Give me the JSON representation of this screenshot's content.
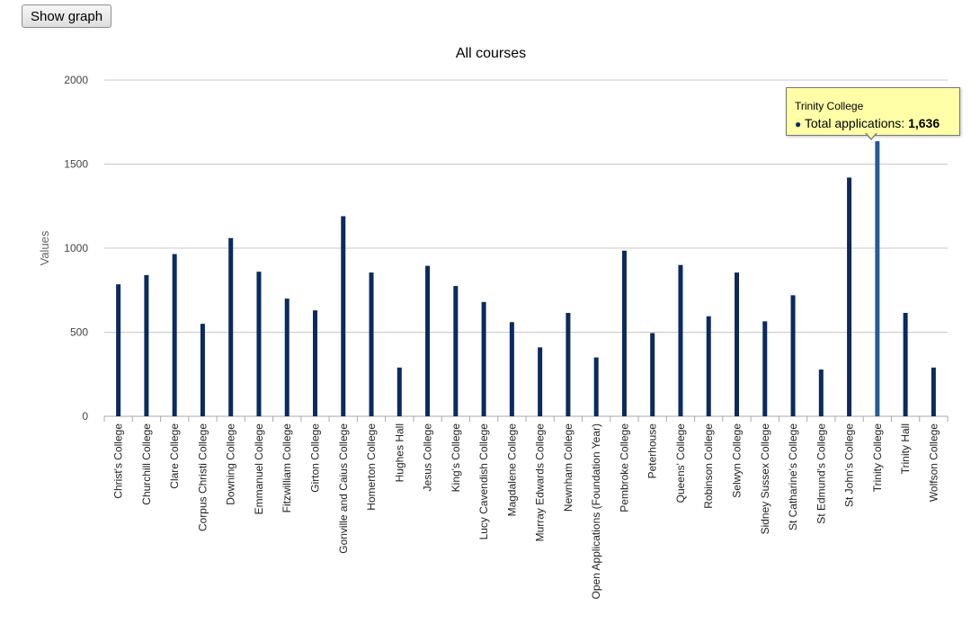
{
  "toolbar": {
    "show_graph_label": "Show graph"
  },
  "tooltip": {
    "title": "Trinity College",
    "series_label": "Total applications:",
    "value_label": "1,636"
  },
  "colors": {
    "bar": "#0b2a5e",
    "bar_highlight": "#2a5a96",
    "grid": "#c8c8c8",
    "axis": "#aaaaaa",
    "tooltip_bg": "#ffffa8"
  },
  "chart_data": {
    "type": "bar",
    "title": "All courses",
    "xlabel": "",
    "ylabel": "Values",
    "ylim": [
      0,
      2000
    ],
    "yticks": [
      0,
      500,
      1000,
      1500,
      2000
    ],
    "grid": true,
    "highlighted_category": "Trinity College",
    "categories": [
      "Christ's College",
      "Churchill College",
      "Clare College",
      "Corpus Christi College",
      "Downing College",
      "Emmanuel College",
      "Fitzwilliam College",
      "Girton College",
      "Gonville and Caius College",
      "Homerton College",
      "Hughes Hall",
      "Jesus College",
      "King's College",
      "Lucy Cavendish College",
      "Magdalene College",
      "Murray Edwards College",
      "Newnham College",
      "Open Applications (Foundation Year)",
      "Pembroke College",
      "Peterhouse",
      "Queens' College",
      "Robinson College",
      "Selwyn College",
      "Sidney Sussex College",
      "St Catharine's College",
      "St Edmund's College",
      "St John's College",
      "Trinity College",
      "Trinity Hall",
      "Wolfson College"
    ],
    "series": [
      {
        "name": "Total applications",
        "values": [
          785,
          840,
          965,
          550,
          1060,
          860,
          700,
          630,
          1190,
          855,
          290,
          895,
          775,
          680,
          560,
          410,
          615,
          350,
          985,
          495,
          900,
          595,
          855,
          565,
          720,
          278,
          1420,
          1636,
          615,
          290
        ]
      }
    ]
  }
}
